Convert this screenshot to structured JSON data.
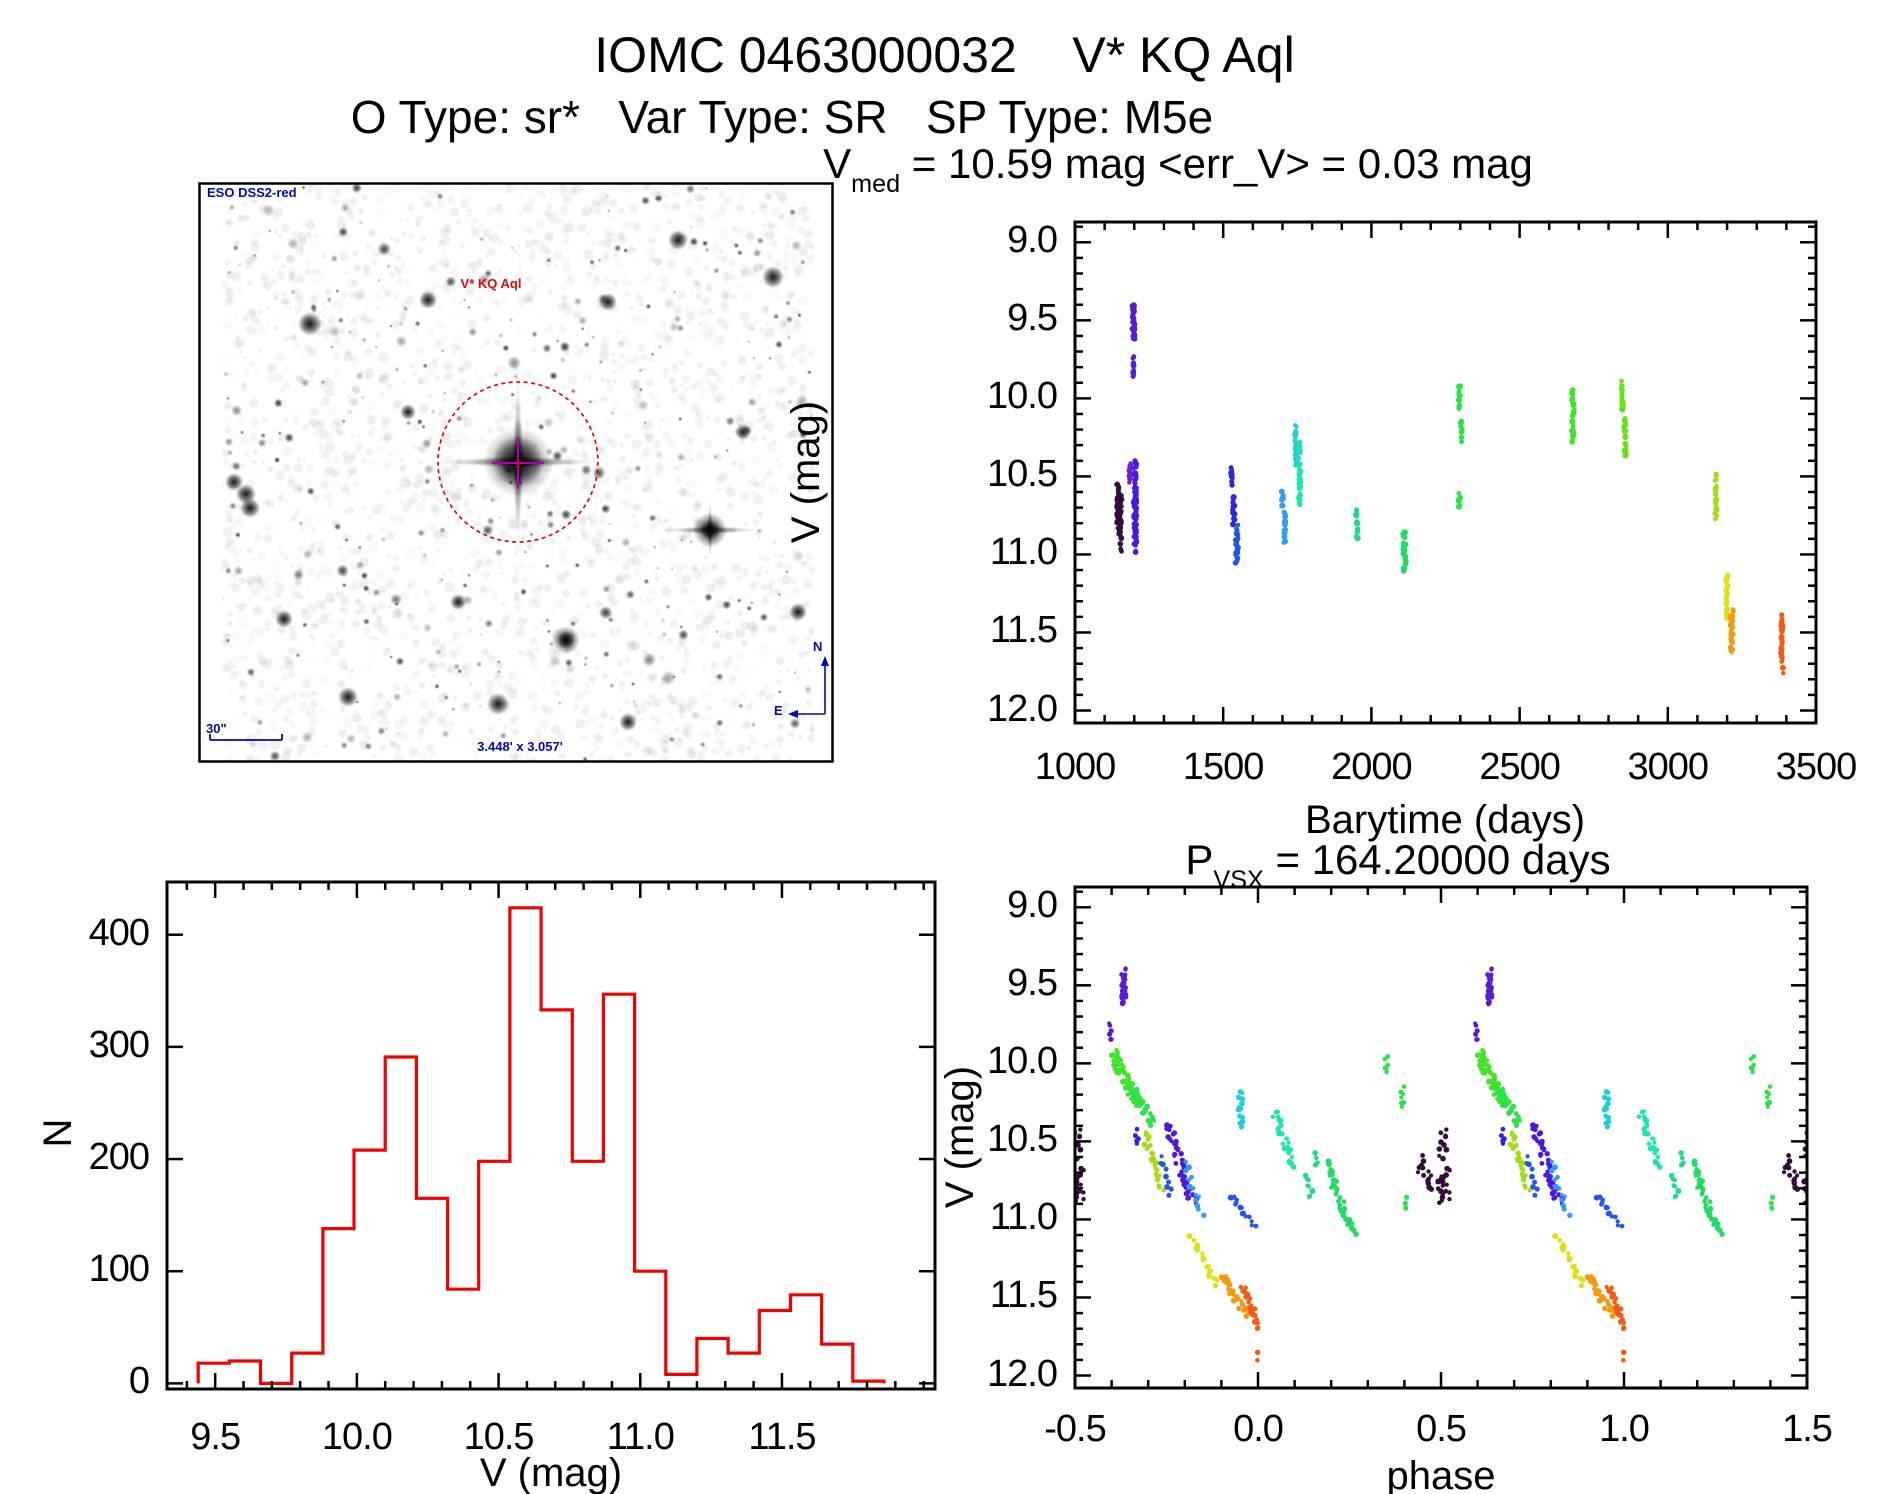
{
  "page": {
    "main_title": "IOMC 0463000032    V* KQ Aql",
    "subtitle": "O Type: sr*   Var Type: SR   SP Type: M5e"
  },
  "finder": {
    "survey_label": "ESO DSS2-red",
    "star_label": "V* KQ Aql",
    "scale_label": "30\"",
    "fov_label": "3.448' x 3.057'",
    "compass_n": "N",
    "compass_e": "E",
    "circle_color": "#d40000",
    "crosshair_color": "#b000b0",
    "annotation_color": "#0008b8",
    "center_mark": "x"
  },
  "chart_data": [
    {
      "id": "lightcurve",
      "type": "scatter",
      "title_prefix": "V",
      "title_sub": "med",
      "title_rest": " = 10.59 mag <err_V> = 0.03 mag",
      "xlabel": "Barytime (days)",
      "ylabel": "V (mag)",
      "xlim": [
        1000,
        3500
      ],
      "ylim_mag": [
        8.87,
        12.08
      ],
      "y_axis_inverted": true,
      "grid": false,
      "xticks": [
        1000,
        1500,
        2000,
        2500,
        3000,
        3500
      ],
      "xtick_labels": [
        "1000",
        "1500",
        "2000",
        "2500",
        "3000",
        "3500"
      ],
      "yticks": [
        9.0,
        9.5,
        10.0,
        10.5,
        11.0,
        11.5,
        12.0
      ],
      "ytick_labels": [
        "9.0",
        "9.5",
        "10.0",
        "10.5",
        "11.0",
        "11.5",
        "12.0"
      ],
      "x_minor_step": 100,
      "y_minor_step": 0.1,
      "seed": 1337,
      "point_radius": 2.5,
      "clusters_format": [
        "x_start_days",
        "mag_start",
        "x_end_days",
        "mag_end",
        "x_jitter_days",
        "n_points",
        "color"
      ],
      "clusters": [
        [
          1146,
          10.56,
          1146,
          10.84,
          6,
          26,
          "#350d3c"
        ],
        [
          1153,
          10.62,
          1153,
          10.92,
          5,
          26,
          "#350d3c"
        ],
        [
          1155,
          10.94,
          1155,
          10.97,
          3,
          3,
          "#350d3c"
        ],
        [
          1197,
          9.4,
          1197,
          9.62,
          4,
          30,
          "#5a1cd2"
        ],
        [
          1197,
          9.74,
          1197,
          9.86,
          3,
          9,
          "#5a1cd2"
        ],
        [
          1186,
          10.42,
          1186,
          10.54,
          3,
          9,
          "#6d22c4"
        ],
        [
          1203,
          10.4,
          1203,
          10.93,
          5,
          60,
          "#4c17e2"
        ],
        [
          1204,
          10.95,
          1204,
          10.98,
          2,
          3,
          "#4c17e2"
        ],
        [
          1529,
          10.44,
          1529,
          10.56,
          3,
          9,
          "#2b28da"
        ],
        [
          1535,
          10.62,
          1535,
          10.81,
          3,
          13,
          "#2b28da"
        ],
        [
          1546,
          10.82,
          1546,
          11.06,
          5,
          24,
          "#2356e8"
        ],
        [
          1700,
          10.61,
          1700,
          10.68,
          3,
          5,
          "#2f9df2"
        ],
        [
          1707,
          10.72,
          1707,
          10.93,
          4,
          16,
          "#2f9df2"
        ],
        [
          1745,
          10.17,
          1745,
          10.42,
          3,
          18,
          "#1ecede"
        ],
        [
          1757,
          10.28,
          1757,
          10.68,
          4,
          32,
          "#1fe4b2"
        ],
        [
          1950,
          10.72,
          1950,
          10.9,
          4,
          13,
          "#1eda8c"
        ],
        [
          2112,
          10.86,
          2112,
          11.11,
          5,
          24,
          "#1fdc62"
        ],
        [
          2298,
          9.92,
          2298,
          10.07,
          3,
          11,
          "#2ae24b"
        ],
        [
          2304,
          10.14,
          2304,
          10.28,
          3,
          8,
          "#2ae24b"
        ],
        [
          2297,
          10.62,
          2297,
          10.7,
          3,
          5,
          "#2ae24b"
        ],
        [
          2680,
          9.95,
          2680,
          10.28,
          4,
          26,
          "#3fe426"
        ],
        [
          2846,
          9.9,
          2846,
          10.06,
          3,
          12,
          "#68e018"
        ],
        [
          2856,
          10.12,
          2856,
          10.36,
          4,
          18,
          "#68e018"
        ],
        [
          3162,
          10.48,
          3162,
          10.78,
          3,
          18,
          "#a6dc14"
        ],
        [
          3200,
          11.13,
          3200,
          11.41,
          3,
          18,
          "#dfdf12"
        ],
        [
          3216,
          11.36,
          3216,
          11.63,
          5,
          26,
          "#f59a10"
        ],
        [
          3386,
          11.4,
          3386,
          11.69,
          4,
          26,
          "#f55a12"
        ],
        [
          3388,
          11.74,
          3388,
          11.77,
          2,
          2,
          "#f55a12"
        ]
      ]
    },
    {
      "id": "histogram",
      "type": "bar",
      "xlabel": "V (mag)",
      "ylabel": "N",
      "color": "#f30000",
      "bin_start": 9.44,
      "bin_width": 0.11,
      "values": [
        18,
        20,
        0,
        27,
        138,
        208,
        291,
        165,
        84,
        198,
        424,
        333,
        198,
        347,
        100,
        8,
        40,
        27,
        65,
        79,
        35,
        2
      ],
      "xlim": [
        9.33,
        12.04
      ],
      "ylim": [
        -5,
        447
      ],
      "xticks": [
        9.5,
        10.0,
        10.5,
        11.0,
        11.5
      ],
      "xtick_labels": [
        "9.5",
        "10.0",
        "10.5",
        "11.0",
        "11.5"
      ],
      "yticks": [
        0,
        100,
        200,
        300,
        400
      ],
      "ytick_labels": [
        "0",
        "100",
        "200",
        "300",
        "400"
      ],
      "x_minor_step": 0.1
    },
    {
      "id": "phase",
      "type": "scatter",
      "title_prefix": "P",
      "title_sub": "VSX",
      "title_rest": " = 164.20000 days",
      "xlabel": "phase",
      "ylabel": "V (mag)",
      "xlim": [
        -0.5,
        1.5
      ],
      "ylim_mag": [
        8.87,
        12.08
      ],
      "y_axis_inverted": true,
      "grid": false,
      "xticks": [
        -0.5,
        0.0,
        0.5,
        1.0,
        1.5
      ],
      "xtick_labels": [
        "-0.5",
        "0.0",
        "0.5",
        "1.0",
        "1.5"
      ],
      "yticks": [
        9.0,
        9.5,
        10.0,
        10.5,
        11.0,
        11.5,
        12.0
      ],
      "ytick_labels": [
        "9.0",
        "9.5",
        "10.0",
        "10.5",
        "11.0",
        "11.5",
        "12.0"
      ],
      "x_minor_step": 0.1,
      "y_minor_step": 0.1,
      "seed": 7331,
      "point_radius": 2.4,
      "phase_duplicate_offsets": [
        -1,
        0,
        1
      ],
      "clusters_format": [
        "phase_start",
        "mag_start",
        "phase_end",
        "mag_end",
        "phase_jitter",
        "n_points",
        "color"
      ],
      "clusters": [
        [
          0.505,
          10.42,
          0.505,
          10.6,
          0.01,
          10,
          "#350d3c"
        ],
        [
          0.512,
          10.68,
          0.512,
          10.87,
          0.012,
          13,
          "#350d3c"
        ],
        [
          0.445,
          10.6,
          0.445,
          10.72,
          0.008,
          7,
          "#350d3c"
        ],
        [
          0.468,
          10.7,
          0.468,
          10.82,
          0.008,
          7,
          "#350d3c"
        ],
        [
          0.498,
          10.74,
          0.498,
          10.9,
          0.008,
          8,
          "#350d3c"
        ],
        [
          0.632,
          9.4,
          0.632,
          9.62,
          0.007,
          24,
          "#5a1cd2"
        ],
        [
          0.597,
          9.75,
          0.597,
          9.86,
          0.005,
          7,
          "#5a1cd2"
        ],
        [
          0.6,
          9.93,
          0.675,
          10.27,
          0.015,
          55,
          "#3fe426"
        ],
        [
          0.655,
          10.15,
          0.715,
          10.4,
          0.012,
          24,
          "#2ae24b"
        ],
        [
          0.69,
          10.45,
          0.735,
          10.8,
          0.01,
          26,
          "#a6dc14"
        ],
        [
          0.755,
          10.4,
          0.822,
          10.89,
          0.012,
          44,
          "#4c17e2"
        ],
        [
          0.67,
          10.43,
          0.67,
          10.52,
          0.005,
          5,
          "#2b28da"
        ],
        [
          0.732,
          10.6,
          0.762,
          10.84,
          0.006,
          9,
          "#2356e8"
        ],
        [
          0.8,
          10.64,
          0.848,
          10.97,
          0.008,
          13,
          "#2f9df2"
        ],
        [
          0.925,
          10.85,
          0.985,
          11.04,
          0.01,
          14,
          "#2356e8"
        ],
        [
          0.952,
          10.18,
          0.952,
          10.42,
          0.006,
          14,
          "#1ecede"
        ],
        [
          0.045,
          10.3,
          0.1,
          10.66,
          0.01,
          26,
          "#1fe4b2"
        ],
        [
          0.13,
          10.72,
          0.145,
          10.86,
          0.008,
          8,
          "#1eda8c"
        ],
        [
          0.158,
          10.56,
          0.158,
          10.66,
          0.005,
          4,
          "#1eda8c"
        ],
        [
          0.185,
          10.64,
          0.262,
          11.09,
          0.012,
          32,
          "#1fdc62"
        ],
        [
          0.35,
          9.95,
          0.35,
          10.06,
          0.005,
          5,
          "#2ae24b"
        ],
        [
          0.395,
          10.16,
          0.395,
          10.28,
          0.006,
          7,
          "#2ae24b"
        ],
        [
          0.405,
          10.85,
          0.405,
          10.93,
          0.004,
          3,
          "#2ae24b"
        ],
        [
          0.815,
          11.1,
          0.888,
          11.42,
          0.008,
          20,
          "#dfdf12"
        ],
        [
          0.9,
          11.36,
          0.972,
          11.62,
          0.01,
          30,
          "#f59a10"
        ],
        [
          0.958,
          11.42,
          1.005,
          11.7,
          0.008,
          22,
          "#f55a12"
        ],
        [
          1.0,
          11.86,
          1.0,
          11.9,
          0.003,
          2,
          "#f55a12"
        ]
      ]
    }
  ]
}
